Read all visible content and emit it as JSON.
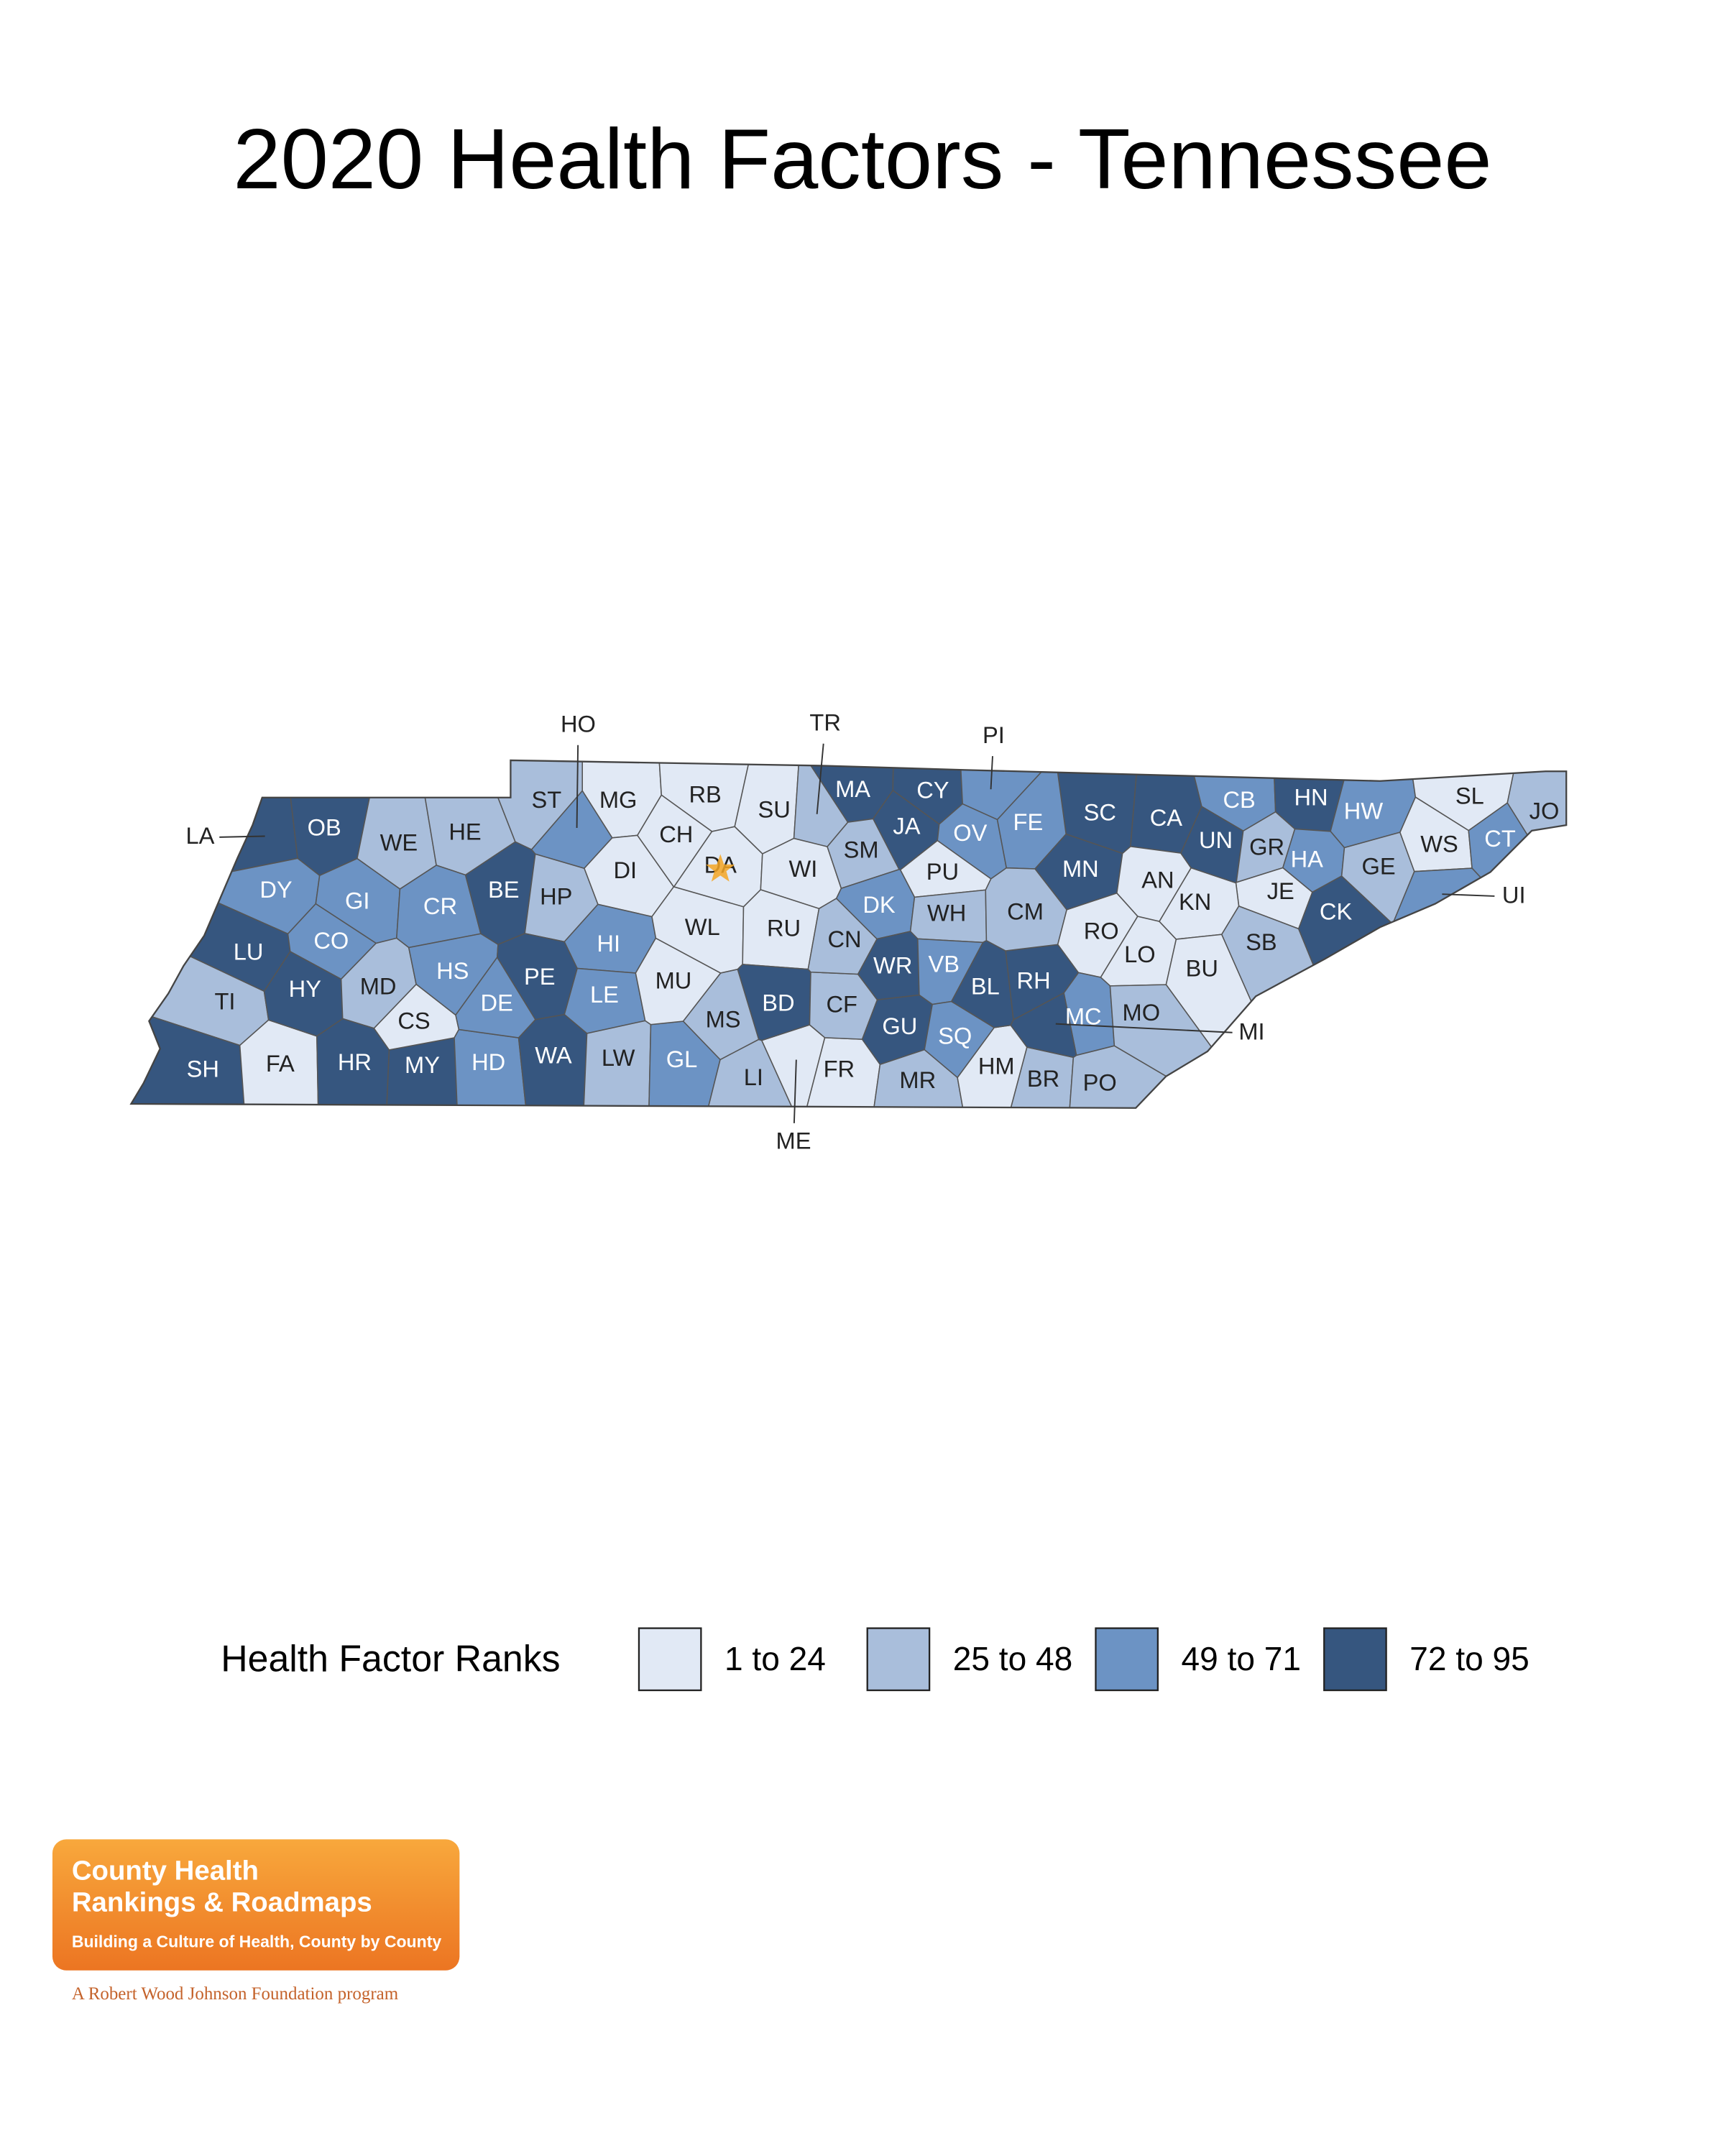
{
  "title": "2020 Health Factors - Tennessee",
  "map": {
    "counties": [
      {
        "label": "LA",
        "bin": 3
      },
      {
        "label": "OB",
        "bin": 3
      },
      {
        "label": "WE",
        "bin": 1
      },
      {
        "label": "HE",
        "bin": 1
      },
      {
        "label": "ST",
        "bin": 1
      },
      {
        "label": "MG",
        "bin": 0
      },
      {
        "label": "RB",
        "bin": 0
      },
      {
        "label": "SU",
        "bin": 0
      },
      {
        "label": "TR",
        "bin": 1
      },
      {
        "label": "MA",
        "bin": 3
      },
      {
        "label": "CY",
        "bin": 3
      },
      {
        "label": "PI",
        "bin": 2
      },
      {
        "label": "SC",
        "bin": 3
      },
      {
        "label": "CA",
        "bin": 3
      },
      {
        "label": "CB",
        "bin": 2
      },
      {
        "label": "HN",
        "bin": 3
      },
      {
        "label": "HW",
        "bin": 2
      },
      {
        "label": "SL",
        "bin": 0
      },
      {
        "label": "JO",
        "bin": 1
      },
      {
        "label": "DY",
        "bin": 2
      },
      {
        "label": "GI",
        "bin": 2
      },
      {
        "label": "CR",
        "bin": 2
      },
      {
        "label": "BE",
        "bin": 3
      },
      {
        "label": "HP",
        "bin": 1
      },
      {
        "label": "HO",
        "bin": 2
      },
      {
        "label": "DI",
        "bin": 0
      },
      {
        "label": "CH",
        "bin": 0
      },
      {
        "label": "DA",
        "bin": 0
      },
      {
        "label": "WI",
        "bin": 0
      },
      {
        "label": "SM",
        "bin": 1
      },
      {
        "label": "JA",
        "bin": 3
      },
      {
        "label": "OV",
        "bin": 2
      },
      {
        "label": "FE",
        "bin": 2
      },
      {
        "label": "PU",
        "bin": 0
      },
      {
        "label": "MN",
        "bin": 3
      },
      {
        "label": "AN",
        "bin": 0
      },
      {
        "label": "UN",
        "bin": 3
      },
      {
        "label": "GR",
        "bin": 1
      },
      {
        "label": "HA",
        "bin": 2
      },
      {
        "label": "JE",
        "bin": 0
      },
      {
        "label": "GE",
        "bin": 1
      },
      {
        "label": "WS",
        "bin": 0
      },
      {
        "label": "CT",
        "bin": 2
      },
      {
        "label": "UI",
        "bin": 2
      },
      {
        "label": "LU",
        "bin": 3
      },
      {
        "label": "TI",
        "bin": 1
      },
      {
        "label": "SH",
        "bin": 3
      },
      {
        "label": "FA",
        "bin": 0
      },
      {
        "label": "HR",
        "bin": 3
      },
      {
        "label": "MY",
        "bin": 3
      },
      {
        "label": "CS",
        "bin": 0
      },
      {
        "label": "HD",
        "bin": 2
      },
      {
        "label": "WA",
        "bin": 3
      },
      {
        "label": "LW",
        "bin": 1
      },
      {
        "label": "GL",
        "bin": 2
      },
      {
        "label": "LI",
        "bin": 1
      },
      {
        "label": "ME",
        "bin": 0
      },
      {
        "label": "FR",
        "bin": 0
      },
      {
        "label": "MR",
        "bin": 1
      },
      {
        "label": "HM",
        "bin": 0
      },
      {
        "label": "BR",
        "bin": 1
      },
      {
        "label": "PO",
        "bin": 1
      },
      {
        "label": "CO",
        "bin": 2
      },
      {
        "label": "HY",
        "bin": 3
      },
      {
        "label": "MD",
        "bin": 1
      },
      {
        "label": "HS",
        "bin": 2
      },
      {
        "label": "DE",
        "bin": 2
      },
      {
        "label": "PE",
        "bin": 3
      },
      {
        "label": "HI",
        "bin": 2
      },
      {
        "label": "LE",
        "bin": 2
      },
      {
        "label": "MU",
        "bin": 0
      },
      {
        "label": "WL",
        "bin": 0
      },
      {
        "label": "RU",
        "bin": 0
      },
      {
        "label": "BD",
        "bin": 3
      },
      {
        "label": "MS",
        "bin": 1
      },
      {
        "label": "CF",
        "bin": 1
      },
      {
        "label": "CN",
        "bin": 1
      },
      {
        "label": "DK",
        "bin": 2
      },
      {
        "label": "WH",
        "bin": 1
      },
      {
        "label": "WR",
        "bin": 3
      },
      {
        "label": "VB",
        "bin": 2
      },
      {
        "label": "GU",
        "bin": 3
      },
      {
        "label": "SQ",
        "bin": 2
      },
      {
        "label": "BL",
        "bin": 3
      },
      {
        "label": "RH",
        "bin": 3
      },
      {
        "label": "CM",
        "bin": 1
      },
      {
        "label": "RO",
        "bin": 0
      },
      {
        "label": "LO",
        "bin": 0
      },
      {
        "label": "KN",
        "bin": 0
      },
      {
        "label": "BU",
        "bin": 0
      },
      {
        "label": "SB",
        "bin": 1
      },
      {
        "label": "CK",
        "bin": 3
      },
      {
        "label": "MC",
        "bin": 2
      },
      {
        "label": "MO",
        "bin": 1
      },
      {
        "label": "MI",
        "bin": 3
      }
    ]
  },
  "legend": {
    "title": "Health Factor Ranks",
    "items": [
      {
        "label": "1 to 24",
        "color": "#e1e9f5"
      },
      {
        "label": "25 to 48",
        "color": "#a9bedb"
      },
      {
        "label": "49 to 71",
        "color": "#6c93c4"
      },
      {
        "label": "72 to 95",
        "color": "#36567f"
      }
    ]
  },
  "logo": {
    "lines": [
      "County Health",
      "Rankings & Roadmaps"
    ],
    "tagline": "Building a Culture of Health, County by County",
    "sponsor": "A Robert Wood Johnson Foundation program"
  }
}
